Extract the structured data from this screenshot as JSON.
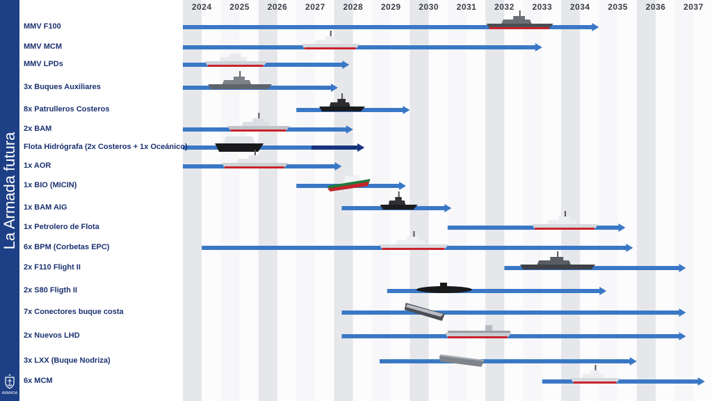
{
  "sidebar": {
    "title": "La Armada futura",
    "logo_text": "ARMADA"
  },
  "years": [
    "2024",
    "2025",
    "2026",
    "2027",
    "2028",
    "2029",
    "2030",
    "2031",
    "2032",
    "2033",
    "2034",
    "2035",
    "2036",
    "2037"
  ],
  "programs": [
    {
      "label": "MMV F100",
      "start": 2024.0,
      "end": 2035.0,
      "ship_at": 2032.8,
      "ship": "frigate-dark"
    },
    {
      "label": "MMV MCM",
      "start": 2024.0,
      "end": 2033.5,
      "ship_at": 2027.8,
      "ship": "patrol-red"
    },
    {
      "label": "MMV LPDs",
      "start": 2024.0,
      "end": 2028.4,
      "ship_at": 2025.3,
      "ship": "amphib-red"
    },
    {
      "label": "3x Buques Auxiliares",
      "start": 2024.0,
      "end": 2028.1,
      "ship_at": 2025.4,
      "ship": "aux-gray"
    },
    {
      "label": "8x Patrulleros Costeros",
      "start": 2027.0,
      "end": 2030.0,
      "ship_at": 2028.1,
      "ship": "patrol-black"
    },
    {
      "label": "2x BAM",
      "start": 2024.0,
      "end": 2028.5,
      "ship_at": 2025.9,
      "ship": "bam-red"
    },
    {
      "label": "Flota Hidrógrafa (2x Costeros + 1x Oceánico)",
      "start": 2024.0,
      "end": 2028.8,
      "ship_at": 2025.4,
      "ship": "hydro-black"
    },
    {
      "label": "1x AOR",
      "start": 2024.0,
      "end": 2028.2,
      "ship_at": 2025.8,
      "ship": "aor-red"
    },
    {
      "label": "1x BIO (MICIN)",
      "start": 2027.0,
      "end": 2029.9,
      "ship_at": 2028.3,
      "ship": "bio-green"
    },
    {
      "label": "1x BAM AIG",
      "start": 2028.2,
      "end": 2031.1,
      "ship_at": 2029.6,
      "ship": "aig-black"
    },
    {
      "label": "1x Petrolero de Flota",
      "start": 2031.0,
      "end": 2035.7,
      "ship_at": 2034.0,
      "ship": "tanker-red"
    },
    {
      "label": "6x BPM (Corbetas EPC)",
      "start": 2024.5,
      "end": 2035.9,
      "ship_at": 2030.0,
      "ship": "corvette-red"
    },
    {
      "label": "2x F110 Flight II",
      "start": 2032.5,
      "end": 2037.3,
      "ship_at": 2033.8,
      "ship": "f110-dark"
    },
    {
      "label": "2x S80 Fligth II",
      "start": 2029.4,
      "end": 2035.2,
      "ship_at": 2030.8,
      "ship": "submarine"
    },
    {
      "label": "7x Conectores buque costa",
      "start": 2028.2,
      "end": 2037.3,
      "ship_at": 2030.3,
      "ship": "connector"
    },
    {
      "label": "2x Nuevos LHD",
      "start": 2028.2,
      "end": 2037.3,
      "ship_at": 2031.7,
      "ship": "lhd"
    },
    {
      "label": "3x LXX (Buque Nodriza)",
      "start": 2029.2,
      "end": 2036.0,
      "ship_at": 2031.3,
      "ship": "lxx"
    },
    {
      "label": "6x MCM",
      "start": 2033.5,
      "end": 2037.8,
      "ship_at": 2034.8,
      "ship": "mcm-red"
    }
  ],
  "colors": {
    "sidebar": "#1d3f85",
    "bar": "#3a78c6",
    "bar_dark": "#16347c",
    "label": "#1b3170",
    "column_shade": "#e6e7eb",
    "hull_red": "#c8232c"
  }
}
